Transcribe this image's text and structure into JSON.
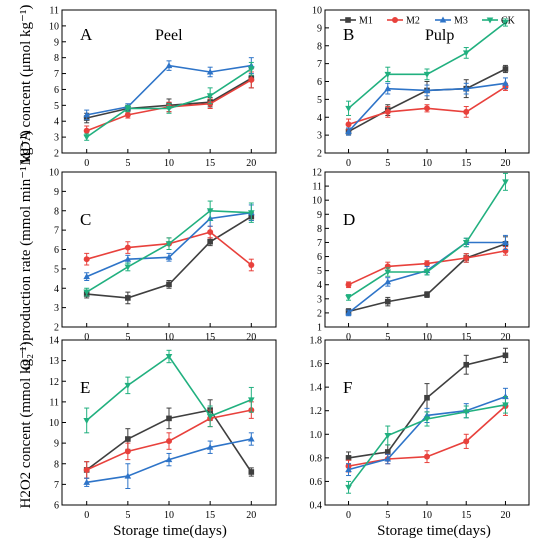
{
  "figure": {
    "xlabel": "Storage time(days)",
    "ylabel_rows": [
      "MDA concent (μmol kg⁻¹)",
      "O₂⁻·production rate (mmol min⁻¹ kg⁻¹)",
      "H2O2 concent (mmol kg⁻¹)"
    ]
  },
  "legend": [
    {
      "name": "M1",
      "color": "#3f3f3f",
      "marker": "square"
    },
    {
      "name": "M2",
      "color": "#e8413c",
      "marker": "circle"
    },
    {
      "name": "M3",
      "color": "#2e74c8",
      "marker": "triangle"
    },
    {
      "name": "CK",
      "color": "#21b07f",
      "marker": "down-triangle"
    }
  ],
  "chart_data": [
    {
      "panel": "A",
      "title": "Peel",
      "type": "line",
      "x": [
        0,
        5,
        10,
        15,
        20
      ],
      "xlim": [
        -3,
        23
      ],
      "xticks": [
        0,
        5,
        10,
        15,
        20
      ],
      "ylim": [
        2,
        11
      ],
      "yticks": [
        2,
        3,
        4,
        5,
        6,
        7,
        8,
        9,
        10,
        11
      ],
      "series": [
        {
          "name": "M1",
          "values": [
            4.2,
            4.8,
            5.0,
            5.2,
            6.7
          ],
          "err": [
            0.3,
            0.2,
            0.4,
            0.3,
            0.6
          ]
        },
        {
          "name": "M2",
          "values": [
            3.4,
            4.4,
            4.9,
            5.1,
            6.6
          ],
          "err": [
            0.3,
            0.2,
            0.3,
            0.3,
            0.5
          ]
        },
        {
          "name": "M3",
          "values": [
            4.4,
            4.9,
            7.5,
            7.1,
            7.5
          ],
          "err": [
            0.3,
            0.2,
            0.3,
            0.3,
            0.5
          ]
        },
        {
          "name": "CK",
          "values": [
            3.0,
            4.8,
            4.8,
            5.6,
            7.3
          ],
          "err": [
            0.2,
            0.2,
            0.3,
            0.5,
            0.4
          ]
        }
      ]
    },
    {
      "panel": "B",
      "title": "Pulp",
      "type": "line",
      "x": [
        0,
        5,
        10,
        15,
        20
      ],
      "xlim": [
        -3,
        23
      ],
      "xticks": [
        0,
        5,
        10,
        15,
        20
      ],
      "ylim": [
        2,
        10
      ],
      "yticks": [
        2,
        3,
        4,
        5,
        6,
        7,
        8,
        9,
        10
      ],
      "series": [
        {
          "name": "M1",
          "values": [
            3.2,
            4.4,
            5.5,
            5.6,
            6.7
          ],
          "err": [
            0.2,
            0.3,
            0.5,
            0.5,
            0.2
          ]
        },
        {
          "name": "M2",
          "values": [
            3.6,
            4.3,
            4.5,
            4.3,
            5.7
          ],
          "err": [
            0.3,
            0.3,
            0.2,
            0.3,
            0.2
          ]
        },
        {
          "name": "M3",
          "values": [
            3.2,
            5.6,
            5.5,
            5.6,
            5.9
          ],
          "err": [
            0.2,
            0.3,
            0.3,
            0.3,
            0.3
          ]
        },
        {
          "name": "CK",
          "values": [
            4.5,
            6.4,
            6.4,
            7.6,
            9.3
          ],
          "err": [
            0.4,
            0.4,
            0.3,
            0.3,
            0.2
          ]
        }
      ]
    },
    {
      "panel": "C",
      "title": "",
      "type": "line",
      "x": [
        0,
        5,
        10,
        15,
        20
      ],
      "xlim": [
        -3,
        23
      ],
      "xticks": [
        0,
        5,
        10,
        15,
        20
      ],
      "ylim": [
        2,
        10
      ],
      "yticks": [
        2,
        3,
        4,
        5,
        6,
        7,
        8,
        9,
        10
      ],
      "series": [
        {
          "name": "M1",
          "values": [
            3.7,
            3.5,
            4.2,
            6.4,
            7.7
          ],
          "err": [
            0.2,
            0.3,
            0.2,
            0.2,
            0.2
          ]
        },
        {
          "name": "M2",
          "values": [
            5.5,
            6.1,
            6.3,
            6.9,
            5.2
          ],
          "err": [
            0.3,
            0.3,
            0.3,
            0.3,
            0.3
          ]
        },
        {
          "name": "M3",
          "values": [
            4.6,
            5.5,
            5.6,
            7.6,
            7.9
          ],
          "err": [
            0.2,
            0.2,
            0.2,
            0.4,
            0.4
          ]
        },
        {
          "name": "CK",
          "values": [
            3.8,
            5.1,
            6.3,
            8.0,
            7.9
          ],
          "err": [
            0.2,
            0.2,
            0.3,
            0.5,
            0.5
          ]
        }
      ]
    },
    {
      "panel": "D",
      "title": "",
      "type": "line",
      "x": [
        0,
        5,
        10,
        15,
        20
      ],
      "xlim": [
        -3,
        23
      ],
      "xticks": [
        0,
        5,
        10,
        15,
        20
      ],
      "ylim": [
        1,
        12
      ],
      "yticks": [
        1,
        2,
        3,
        4,
        5,
        6,
        7,
        8,
        9,
        10,
        11,
        12
      ],
      "series": [
        {
          "name": "M1",
          "values": [
            2.1,
            2.8,
            3.3,
            5.9,
            6.9
          ],
          "err": [
            0.2,
            0.3,
            0.2,
            0.3,
            0.5
          ]
        },
        {
          "name": "M2",
          "values": [
            4.0,
            5.3,
            5.5,
            5.9,
            6.4
          ],
          "err": [
            0.2,
            0.3,
            0.2,
            0.3,
            0.3
          ]
        },
        {
          "name": "M3",
          "values": [
            2.0,
            4.2,
            5.0,
            7.0,
            7.0
          ],
          "err": [
            0.2,
            0.3,
            0.3,
            0.3,
            0.5
          ]
        },
        {
          "name": "CK",
          "values": [
            3.1,
            4.9,
            4.9,
            7.0,
            11.3
          ],
          "err": [
            0.2,
            0.3,
            0.2,
            0.3,
            0.6
          ]
        }
      ]
    },
    {
      "panel": "E",
      "title": "",
      "type": "line",
      "x": [
        0,
        5,
        10,
        15,
        20
      ],
      "xlim": [
        -3,
        23
      ],
      "xticks": [
        0,
        5,
        10,
        15,
        20
      ],
      "ylim": [
        6,
        14
      ],
      "yticks": [
        6,
        7,
        8,
        9,
        10,
        11,
        12,
        13,
        14
      ],
      "series": [
        {
          "name": "M1",
          "values": [
            7.7,
            9.2,
            10.2,
            10.6,
            7.6
          ],
          "err": [
            0.4,
            0.5,
            0.5,
            0.5,
            0.2
          ]
        },
        {
          "name": "M2",
          "values": [
            7.7,
            8.6,
            9.1,
            10.2,
            10.6
          ],
          "err": [
            0.4,
            0.4,
            0.4,
            0.4,
            0.4
          ]
        },
        {
          "name": "M3",
          "values": [
            7.1,
            7.4,
            8.2,
            8.8,
            9.2
          ],
          "err": [
            0.2,
            0.6,
            0.3,
            0.3,
            0.3
          ]
        },
        {
          "name": "CK",
          "values": [
            10.1,
            11.8,
            13.2,
            10.3,
            11.1
          ],
          "err": [
            0.6,
            0.4,
            0.3,
            0.5,
            0.6
          ]
        }
      ]
    },
    {
      "panel": "F",
      "title": "",
      "type": "line",
      "x": [
        0,
        5,
        10,
        15,
        20
      ],
      "xlim": [
        -3,
        23
      ],
      "xticks": [
        0,
        5,
        10,
        15,
        20
      ],
      "ylim": [
        0.4,
        1.8
      ],
      "yticks": [
        0.4,
        0.6,
        0.8,
        1.0,
        1.2,
        1.4,
        1.6,
        1.8
      ],
      "series": [
        {
          "name": "M1",
          "values": [
            0.8,
            0.85,
            1.31,
            1.59,
            1.67
          ],
          "err": [
            0.05,
            0.06,
            0.12,
            0.08,
            0.06
          ]
        },
        {
          "name": "M2",
          "values": [
            0.73,
            0.79,
            0.81,
            0.94,
            1.24
          ],
          "err": [
            0.05,
            0.04,
            0.05,
            0.06,
            0.08
          ]
        },
        {
          "name": "M3",
          "values": [
            0.7,
            0.79,
            1.16,
            1.2,
            1.32
          ],
          "err": [
            0.05,
            0.04,
            0.06,
            0.06,
            0.07
          ]
        },
        {
          "name": "CK",
          "values": [
            0.55,
            0.99,
            1.13,
            1.19,
            1.25
          ],
          "err": [
            0.05,
            0.08,
            0.06,
            0.05,
            0.07
          ]
        }
      ]
    }
  ]
}
